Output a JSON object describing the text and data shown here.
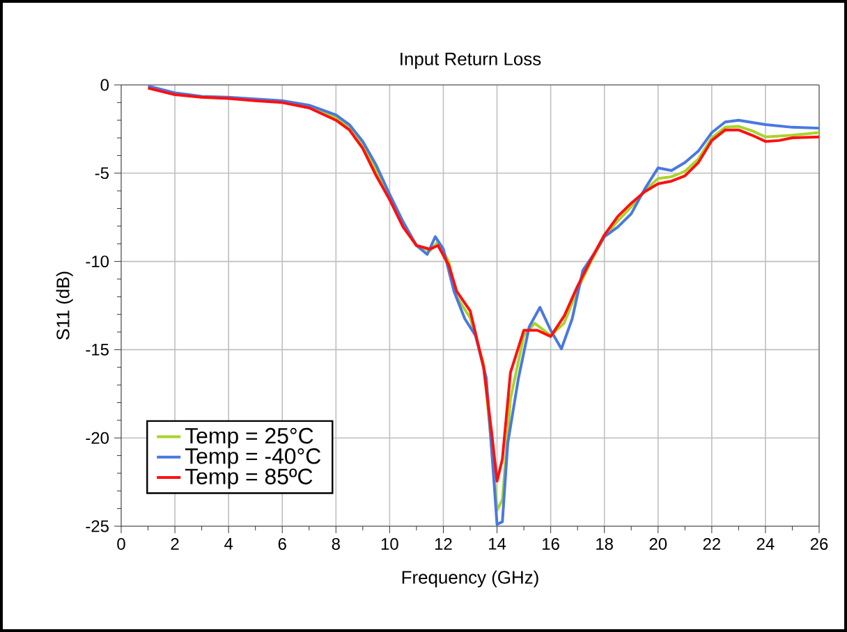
{
  "chart_data": {
    "type": "line",
    "title": "Input Return Loss",
    "xlabel": "Frequency (GHz)",
    "ylabel": "S11 (dB)",
    "xlim": [
      0,
      26
    ],
    "xticks": [
      0,
      2,
      4,
      6,
      8,
      10,
      12,
      14,
      16,
      18,
      20,
      22,
      24,
      26
    ],
    "ylim": [
      -25,
      0
    ],
    "yticks": [
      -25,
      -20,
      -15,
      -10,
      -5,
      0
    ],
    "grid": true,
    "legend": "bottom left",
    "marker": "none",
    "line_style": "solid",
    "series": [
      {
        "name": "Temp = 25°C",
        "color": "#a8d42a",
        "x": [
          6,
          7,
          8,
          8.5,
          9,
          9.5,
          10,
          10.5,
          11,
          11.5,
          11.8,
          12.2,
          12.5,
          13,
          13.5,
          13.8,
          14.0,
          14.2,
          14.5,
          15,
          15.4,
          16,
          16.5,
          17,
          17.5,
          18,
          18.5,
          19,
          19.5,
          20,
          20.5,
          21,
          21.5,
          22,
          22.5,
          23,
          23.5,
          24,
          25,
          26
        ],
        "values": [
          -0.95,
          -1.2,
          -1.85,
          -2.4,
          -3.4,
          -4.85,
          -6.35,
          -7.9,
          -9.1,
          -9.4,
          -8.9,
          -10.0,
          -12.0,
          -13.2,
          -15.8,
          -20.5,
          -24.1,
          -23.5,
          -17.8,
          -14.2,
          -13.5,
          -14.2,
          -13.5,
          -11.6,
          -10.0,
          -8.6,
          -7.7,
          -6.9,
          -6.0,
          -5.3,
          -5.2,
          -4.9,
          -4.2,
          -3.0,
          -2.4,
          -2.35,
          -2.6,
          -2.95,
          -2.85,
          -2.7
        ]
      },
      {
        "name": "Temp = -40°C",
        "color": "#4a78e0",
        "x": [
          1,
          2,
          3,
          4,
          5,
          6,
          7,
          8,
          8.5,
          9,
          9.5,
          10,
          10.5,
          11,
          11.4,
          11.7,
          12,
          12.4,
          12.8,
          13.2,
          13.6,
          13.9,
          14.0,
          14.2,
          14.4,
          14.8,
          15.2,
          15.6,
          16.0,
          16.4,
          16.8,
          17.2,
          17.6,
          18,
          18.5,
          19,
          19.5,
          20,
          20.5,
          21,
          21.5,
          22,
          22.5,
          23,
          24,
          25,
          26
        ],
        "values": [
          -0.06,
          -0.45,
          -0.65,
          -0.7,
          -0.8,
          -0.9,
          -1.15,
          -1.7,
          -2.25,
          -3.2,
          -4.55,
          -6.2,
          -7.75,
          -9.1,
          -9.6,
          -8.6,
          -9.3,
          -11.7,
          -13.25,
          -14.2,
          -16.6,
          -22.75,
          -24.9,
          -24.75,
          -20.3,
          -16.6,
          -13.7,
          -12.6,
          -13.9,
          -14.95,
          -13.25,
          -10.5,
          -9.6,
          -8.6,
          -8.05,
          -7.3,
          -5.9,
          -4.7,
          -4.85,
          -4.4,
          -3.75,
          -2.7,
          -2.1,
          -2.0,
          -2.25,
          -2.4,
          -2.45
        ]
      },
      {
        "name": "Temp = 85ºC",
        "color": "#ff1010",
        "x": [
          1,
          2,
          3,
          4,
          5,
          6,
          7,
          8,
          8.5,
          9,
          9.5,
          10,
          10.5,
          11,
          11.5,
          11.8,
          12.2,
          12.5,
          13,
          13.5,
          13.8,
          14.0,
          14.2,
          14.5,
          15,
          15.5,
          16,
          16.5,
          17,
          17.5,
          18,
          18.5,
          19,
          19.5,
          20,
          20.5,
          21,
          21.5,
          22,
          22.5,
          23,
          23.5,
          24,
          24.5,
          25,
          26
        ],
        "values": [
          -0.18,
          -0.55,
          -0.7,
          -0.77,
          -0.9,
          -1.0,
          -1.3,
          -2.0,
          -2.55,
          -3.6,
          -5.15,
          -6.5,
          -8.05,
          -9.1,
          -9.3,
          -9.1,
          -10.2,
          -11.7,
          -12.8,
          -16.0,
          -19.7,
          -22.45,
          -21.2,
          -16.3,
          -13.9,
          -13.9,
          -14.25,
          -13.1,
          -11.4,
          -9.9,
          -8.5,
          -7.45,
          -6.7,
          -6.05,
          -5.6,
          -5.45,
          -5.15,
          -4.4,
          -3.15,
          -2.55,
          -2.55,
          -2.85,
          -3.2,
          -3.15,
          -3.0,
          -2.95
        ]
      }
    ]
  }
}
